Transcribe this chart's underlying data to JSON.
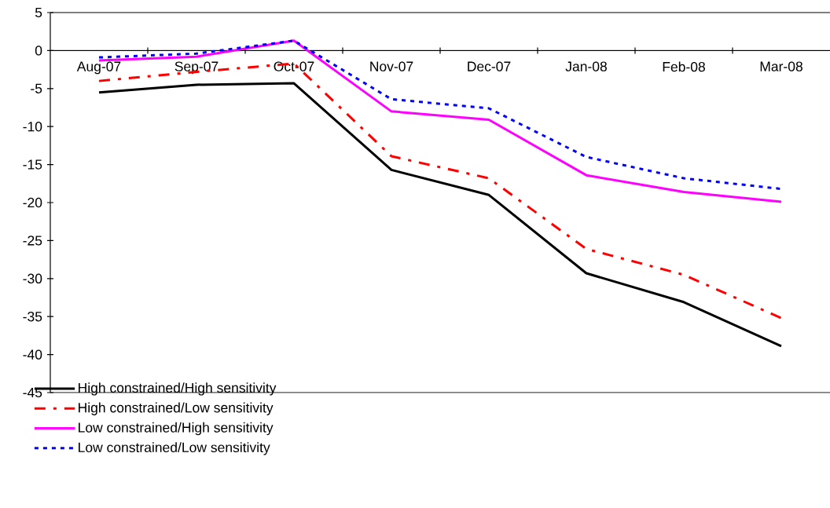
{
  "chart_data": {
    "type": "line",
    "categories": [
      "Aug-07",
      "Sep-07",
      "Oct-07",
      "Nov-07",
      "Dec-07",
      "Jan-08",
      "Feb-08",
      "Mar-08"
    ],
    "series": [
      {
        "name": "High constrained/High sensitivity",
        "color": "#000000",
        "line_style": "solid",
        "values": [
          -5.5,
          -4.5,
          -4.3,
          -15.7,
          -19.0,
          -29.3,
          -33.1,
          -38.9
        ]
      },
      {
        "name": "High constrained/Low sensitivity",
        "color": "#ff0000",
        "line_style": "dashed",
        "values": [
          -4.0,
          -2.8,
          -1.7,
          -13.9,
          -16.8,
          -26.1,
          -29.5,
          -35.2
        ]
      },
      {
        "name": "Low constrained/High sensitivity",
        "color": "#ff00ff",
        "line_style": "solid",
        "values": [
          -1.3,
          -0.8,
          1.3,
          -8.0,
          -9.1,
          -16.4,
          -18.6,
          -19.9
        ]
      },
      {
        "name": "Low constrained/Low sensitivity",
        "color": "#0000ff",
        "line_style": "dotted",
        "values": [
          -0.9,
          -0.4,
          1.3,
          -6.4,
          -7.6,
          -14.0,
          -16.8,
          -18.2
        ]
      }
    ],
    "ylim": [
      -45,
      5
    ],
    "yticks": [
      5,
      0,
      -5,
      -10,
      -15,
      -20,
      -25,
      -30,
      -35,
      -40,
      -45
    ],
    "grid": false,
    "legend": "bottom left",
    "marker": "none"
  }
}
